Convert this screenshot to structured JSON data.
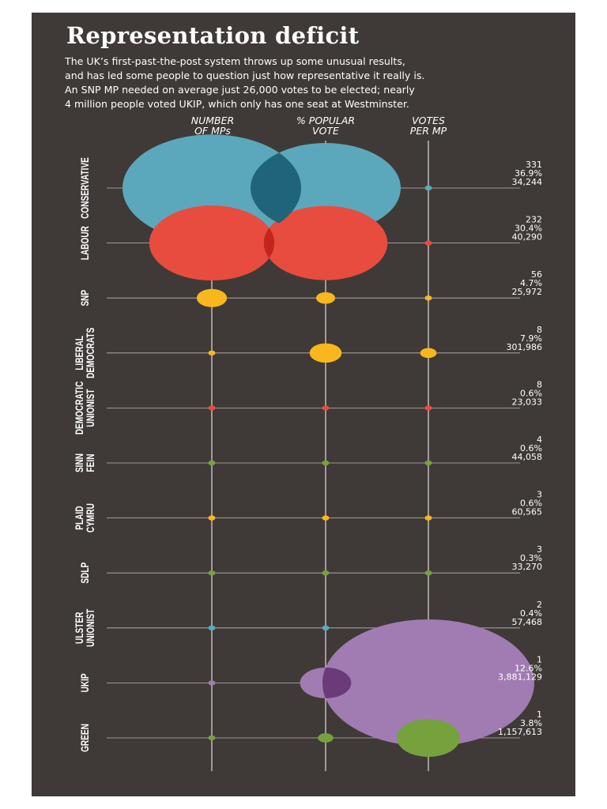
{
  "header": {
    "title": "Representation deficit",
    "subtitle_lines": [
      "The UK’s first-past-the-post system throws up some unusual results,",
      "and has led some people to question just how representative it really is.",
      "An SNP MP needed on average just 26,000 votes to be elected; nearly",
      "4 million people voted UKIP, which only has one seat at Westminster."
    ]
  },
  "columns": {
    "mps": [
      "NUMBER",
      "OF MPs"
    ],
    "vote": [
      "% POPULAR",
      "VOTE"
    ],
    "vpm": [
      "VOTES",
      "PER MP"
    ]
  },
  "colors": {
    "background": "#3f3a37",
    "text": "#ffffff",
    "line": "#bdb7b3"
  },
  "chart_data": {
    "type": "bubble",
    "metrics": [
      "NUMBER OF MPs",
      "% POPULAR VOTE",
      "VOTES PER MP"
    ],
    "parties": [
      {
        "name": [
          "CONSERVATIVE"
        ],
        "mps": 331,
        "vote": 36.9,
        "votes_per_mp": 34244,
        "labels": [
          "331",
          "36.9%",
          "34,244"
        ],
        "color": "#5ba8bc",
        "overlap": "#1f6478"
      },
      {
        "name": [
          "LABOUR"
        ],
        "mps": 232,
        "vote": 30.4,
        "votes_per_mp": 40290,
        "labels": [
          "232",
          "30.4%",
          "40,290"
        ],
        "color": "#e84c3f",
        "overlap": "#c2251d"
      },
      {
        "name": [
          "SNP"
        ],
        "mps": 56,
        "vote": 4.7,
        "votes_per_mp": 25972,
        "labels": [
          "56",
          "4.7%",
          "25,972"
        ],
        "color": "#f8b71c"
      },
      {
        "name": [
          "LIBERAL",
          "DEMOCRATS"
        ],
        "mps": 8,
        "vote": 7.9,
        "votes_per_mp": 301986,
        "labels": [
          "8",
          "7.9%",
          "301,986"
        ],
        "color": "#f8b71c"
      },
      {
        "name": [
          "DEMOCRATIC",
          "UNIONIST"
        ],
        "mps": 8,
        "vote": 0.6,
        "votes_per_mp": 23033,
        "labels": [
          "8",
          "0.6%",
          "23,033"
        ],
        "color": "#e84c3f"
      },
      {
        "name": [
          "SINN",
          "FEIN"
        ],
        "mps": 4,
        "vote": 0.6,
        "votes_per_mp": 44058,
        "labels": [
          "4",
          "0.6%",
          "44,058"
        ],
        "color": "#76a23e"
      },
      {
        "name": [
          "PLAID",
          "CYMRU"
        ],
        "mps": 3,
        "vote": 0.6,
        "votes_per_mp": 60565,
        "labels": [
          "3",
          "0.6%",
          "60,565"
        ],
        "color": "#f8b71c"
      },
      {
        "name": [
          "SDLP"
        ],
        "mps": 3,
        "vote": 0.3,
        "votes_per_mp": 33270,
        "labels": [
          "3",
          "0.3%",
          "33,270"
        ],
        "color": "#76a23e"
      },
      {
        "name": [
          "ULSTER",
          "UNIONIST"
        ],
        "mps": 2,
        "vote": 0.4,
        "votes_per_mp": 57468,
        "labels": [
          "2",
          "0.4%",
          "57,468"
        ],
        "color": "#5ba8bc"
      },
      {
        "name": [
          "UKIP"
        ],
        "mps": 1,
        "vote": 12.6,
        "votes_per_mp": 3881129,
        "labels": [
          "1",
          "12.6%",
          "3,881,129"
        ],
        "color": "#a07cb2",
        "overlap": "#6a3b78"
      },
      {
        "name": [
          "GREEN"
        ],
        "mps": 1,
        "vote": 3.8,
        "votes_per_mp": 1157613,
        "labels": [
          "1",
          "3.8%",
          "1,157,613"
        ],
        "color": "#76a23e",
        "overlap": "#445a22"
      }
    ]
  }
}
